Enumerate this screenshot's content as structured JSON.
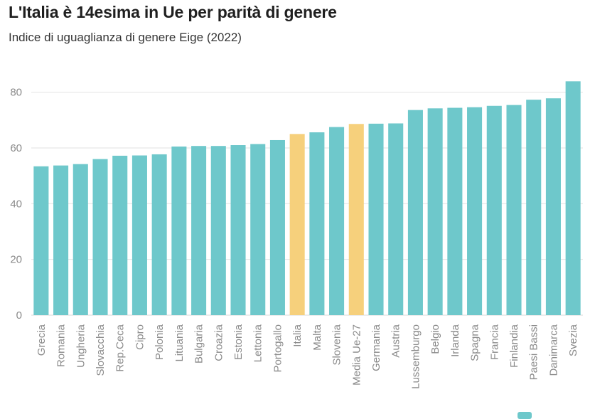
{
  "header": {
    "title": "L'Italia è 14esima in Ue per parità di genere",
    "subtitle": "Indice di uguaglianza di genere Eige (2022)"
  },
  "colors": {
    "default_bar": "#6ec8cb",
    "highlight_bar": "#f6d07c"
  },
  "chart_data": {
    "type": "bar",
    "title": "L'Italia è 14esima in Ue per parità di genere",
    "subtitle": "Indice di uguaglianza di genere Eige (2022)",
    "xlabel": "",
    "ylabel": "",
    "ylim": [
      0,
      85
    ],
    "yticks": [
      0,
      20,
      40,
      60,
      80
    ],
    "grid": true,
    "categories": [
      "Grecia",
      "Romania",
      "Ungheria",
      "Slovacchia",
      "Rep.Ceca",
      "Cipro",
      "Polonia",
      "Lituania",
      "Bulgaria",
      "Croazia",
      "Estonia",
      "Lettonia",
      "Portogallo",
      "Italia",
      "Malta",
      "Slovenia",
      "Media Ue-27",
      "Germania",
      "Austria",
      "Lussemburgo",
      "Belgio",
      "Irlanda",
      "Spagna",
      "Francia",
      "Finlandia",
      "Paesi Bassi",
      "Danimarca",
      "Svezia"
    ],
    "values": [
      53.4,
      53.7,
      54.2,
      56.0,
      57.2,
      57.3,
      57.7,
      60.5,
      60.7,
      60.7,
      61.0,
      61.4,
      62.8,
      65.0,
      65.6,
      67.5,
      68.6,
      68.7,
      68.8,
      73.6,
      74.2,
      74.4,
      74.6,
      75.1,
      75.4,
      77.3,
      77.8,
      83.9
    ],
    "highlighted": [
      "Italia",
      "Media Ue-27"
    ]
  }
}
